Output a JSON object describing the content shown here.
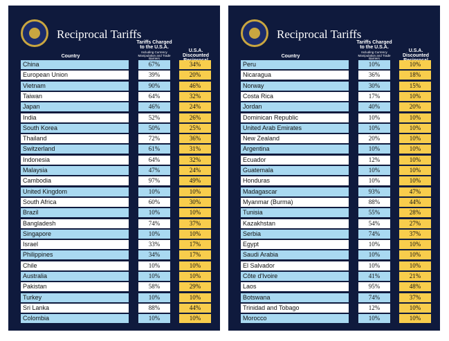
{
  "panels": [
    {
      "title": "Reciprocal Tariffs",
      "headers": [
        "Country",
        "Tariffs Charged to the U.S.A.",
        "Including Currency Manipulation and Trade Barriers",
        "U.S.A. Discounted Reciprocal Tariffs"
      ],
      "rows": [
        [
          "China",
          "67%",
          "34%"
        ],
        [
          "European Union",
          "39%",
          "20%"
        ],
        [
          "Vietnam",
          "90%",
          "46%"
        ],
        [
          "Taiwan",
          "64%",
          "32%"
        ],
        [
          "Japan",
          "46%",
          "24%"
        ],
        [
          "India",
          "52%",
          "26%"
        ],
        [
          "South Korea",
          "50%",
          "25%"
        ],
        [
          "Thailand",
          "72%",
          "36%"
        ],
        [
          "Switzerland",
          "61%",
          "31%"
        ],
        [
          "Indonesia",
          "64%",
          "32%"
        ],
        [
          "Malaysia",
          "47%",
          "24%"
        ],
        [
          "Cambodia",
          "97%",
          "49%"
        ],
        [
          "United Kingdom",
          "10%",
          "10%"
        ],
        [
          "South Africa",
          "60%",
          "30%"
        ],
        [
          "Brazil",
          "10%",
          "10%"
        ],
        [
          "Bangladesh",
          "74%",
          "37%"
        ],
        [
          "Singapore",
          "10%",
          "10%"
        ],
        [
          "Israel",
          "33%",
          "17%"
        ],
        [
          "Philippines",
          "34%",
          "17%"
        ],
        [
          "Chile",
          "10%",
          "10%"
        ],
        [
          "Australia",
          "10%",
          "10%"
        ],
        [
          "Pakistan",
          "58%",
          "29%"
        ],
        [
          "Turkey",
          "10%",
          "10%"
        ],
        [
          "Sri Lanka",
          "88%",
          "44%"
        ],
        [
          "Colombia",
          "10%",
          "10%"
        ]
      ]
    },
    {
      "title": "Reciprocal Tariffs",
      "headers": [
        "Country",
        "Tariffs Charged to the U.S.A.",
        "Including Currency Manipulation and Trade Barriers",
        "U.S.A. Discounted Reciprocal Tariffs"
      ],
      "rows": [
        [
          "Peru",
          "10%",
          "10%"
        ],
        [
          "Nicaragua",
          "36%",
          "18%"
        ],
        [
          "Norway",
          "30%",
          "15%"
        ],
        [
          "Costa Rica",
          "17%",
          "10%"
        ],
        [
          "Jordan",
          "40%",
          "20%"
        ],
        [
          "Dominican Republic",
          "10%",
          "10%"
        ],
        [
          "United Arab Emirates",
          "10%",
          "10%"
        ],
        [
          "New Zealand",
          "20%",
          "10%"
        ],
        [
          "Argentina",
          "10%",
          "10%"
        ],
        [
          "Ecuador",
          "12%",
          "10%"
        ],
        [
          "Guatemala",
          "10%",
          "10%"
        ],
        [
          "Honduras",
          "10%",
          "10%"
        ],
        [
          "Madagascar",
          "93%",
          "47%"
        ],
        [
          "Myanmar (Burma)",
          "88%",
          "44%"
        ],
        [
          "Tunisia",
          "55%",
          "28%"
        ],
        [
          "Kazakhstan",
          "54%",
          "27%"
        ],
        [
          "Serbia",
          "74%",
          "37%"
        ],
        [
          "Egypt",
          "10%",
          "10%"
        ],
        [
          "Saudi Arabia",
          "10%",
          "10%"
        ],
        [
          "El Salvador",
          "10%",
          "10%"
        ],
        [
          "Côte d'Ivoire",
          "41%",
          "21%"
        ],
        [
          "Laos",
          "95%",
          "48%"
        ],
        [
          "Botswana",
          "74%",
          "37%"
        ],
        [
          "Trinidad and Tobago",
          "12%",
          "10%"
        ],
        [
          "Morocco",
          "10%",
          "10%"
        ]
      ]
    }
  ]
}
